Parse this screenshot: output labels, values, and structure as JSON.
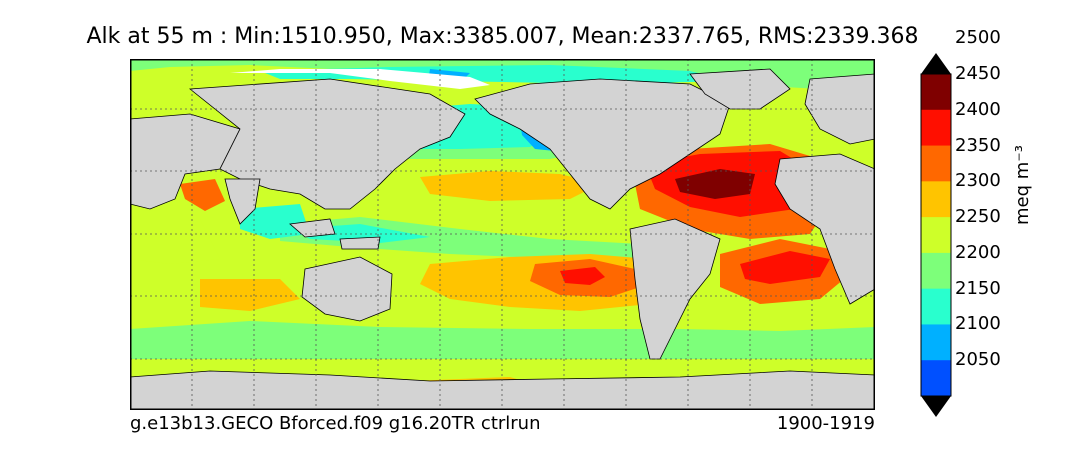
{
  "title": "Alk at 55 m : Min:1510.950, Max:3385.007, Mean:2337.765, RMS:2339.368",
  "footer": {
    "case": "g.e13b13.GECO Bforced.f09 g16.20TR ctrlrun",
    "years": "1900-1919"
  },
  "colorbar": {
    "units": "meq m⁻³",
    "ticks": [
      "2050",
      "2100",
      "2150",
      "2200",
      "2250",
      "2300",
      "2350",
      "2400",
      "2450",
      "2500"
    ],
    "colors": [
      "#00007f",
      "#0000ff",
      "#0050ff",
      "#00b0ff",
      "#29ffce",
      "#7dff7a",
      "#ceff29",
      "#ffc400",
      "#ff6800",
      "#ff0f00",
      "#7f0000"
    ],
    "extend": "both"
  },
  "map": {
    "field": "Alk",
    "depth": "55 m",
    "land_color": "#d3d3d3",
    "grid": true,
    "projection": "cylindrical equidistant",
    "color_scale": "jet"
  }
}
